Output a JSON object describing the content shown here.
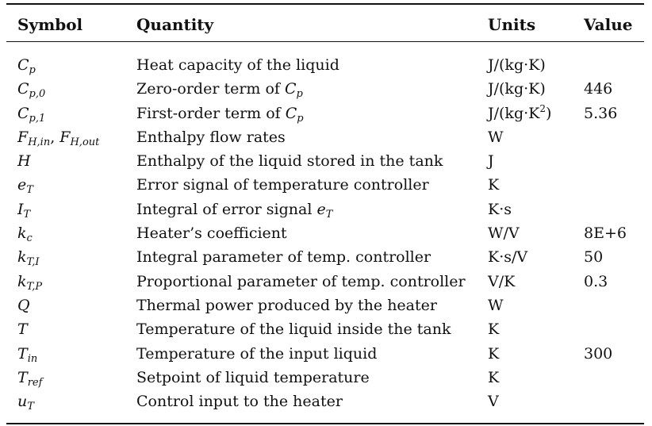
{
  "headers": {
    "symbol": "Symbol",
    "quantity": "Quantity",
    "units": "Units",
    "value": "Value"
  },
  "rows": [
    {
      "symbol_main": "C",
      "symbol_sub": "p",
      "quantity_text": "Heat capacity of the liquid",
      "units": "J/(kg·K)",
      "value": ""
    },
    {
      "symbol_main": "C",
      "symbol_sub": "p,0",
      "quantity_text": "Zero-order term of",
      "quantity_ref_main": "C",
      "quantity_ref_sub": "p",
      "units": "J/(kg·K)",
      "value": "446"
    },
    {
      "symbol_main": "C",
      "symbol_sub": "p,1",
      "quantity_text": "First-order term of",
      "quantity_ref_main": "C",
      "quantity_ref_sub": "p",
      "units_pre": "J/(kg·K",
      "units_sup": "2",
      "units_post": ")",
      "value": "5.36"
    },
    {
      "symbol_main": "F",
      "symbol_sub": "H,in",
      "symbol_sep": ", ",
      "symbol2_main": "F",
      "symbol2_sub": "H,out",
      "quantity_text": "Enthalpy flow rates",
      "units": "W",
      "value": ""
    },
    {
      "symbol_main": "H",
      "symbol_sub": "",
      "quantity_text": "Enthalpy of the liquid stored in the tank",
      "units": "J",
      "value": ""
    },
    {
      "symbol_main": "e",
      "symbol_sub": "T",
      "quantity_text": "Error signal of temperature controller",
      "units": "K",
      "value": ""
    },
    {
      "symbol_main": "I",
      "symbol_sub": "T",
      "quantity_text": "Integral of error signal",
      "quantity_ref_main": "e",
      "quantity_ref_sub": "T",
      "units": "K·s",
      "value": ""
    },
    {
      "symbol_main": "k",
      "symbol_sub": "c",
      "quantity_text": "Heater’s coefficient",
      "units": "W/V",
      "value": "8E+6"
    },
    {
      "symbol_main": "k",
      "symbol_sub": "T,I",
      "quantity_text": "Integral parameter of temp. controller",
      "units": "K·s/V",
      "value": "50"
    },
    {
      "symbol_main": "k",
      "symbol_sub": "T,P",
      "quantity_text": "Proportional parameter of temp. controller",
      "units": "V/K",
      "value": "0.3"
    },
    {
      "symbol_main": "Q",
      "symbol_sub": "",
      "quantity_text": "Thermal power produced by the heater",
      "units": "W",
      "value": ""
    },
    {
      "symbol_main": "T",
      "symbol_sub": "",
      "quantity_text": "Temperature of the liquid inside the tank",
      "units": "K",
      "value": ""
    },
    {
      "symbol_main": "T",
      "symbol_sub": "in",
      "quantity_text": "Temperature of the input liquid",
      "units": "K",
      "value": "300"
    },
    {
      "symbol_main": "T",
      "symbol_sub": "ref",
      "quantity_text": "Setpoint of liquid temperature",
      "units": "K",
      "value": ""
    },
    {
      "symbol_main": "u",
      "symbol_sub": "T",
      "quantity_text": "Control input to the heater",
      "units": "V",
      "value": ""
    }
  ]
}
